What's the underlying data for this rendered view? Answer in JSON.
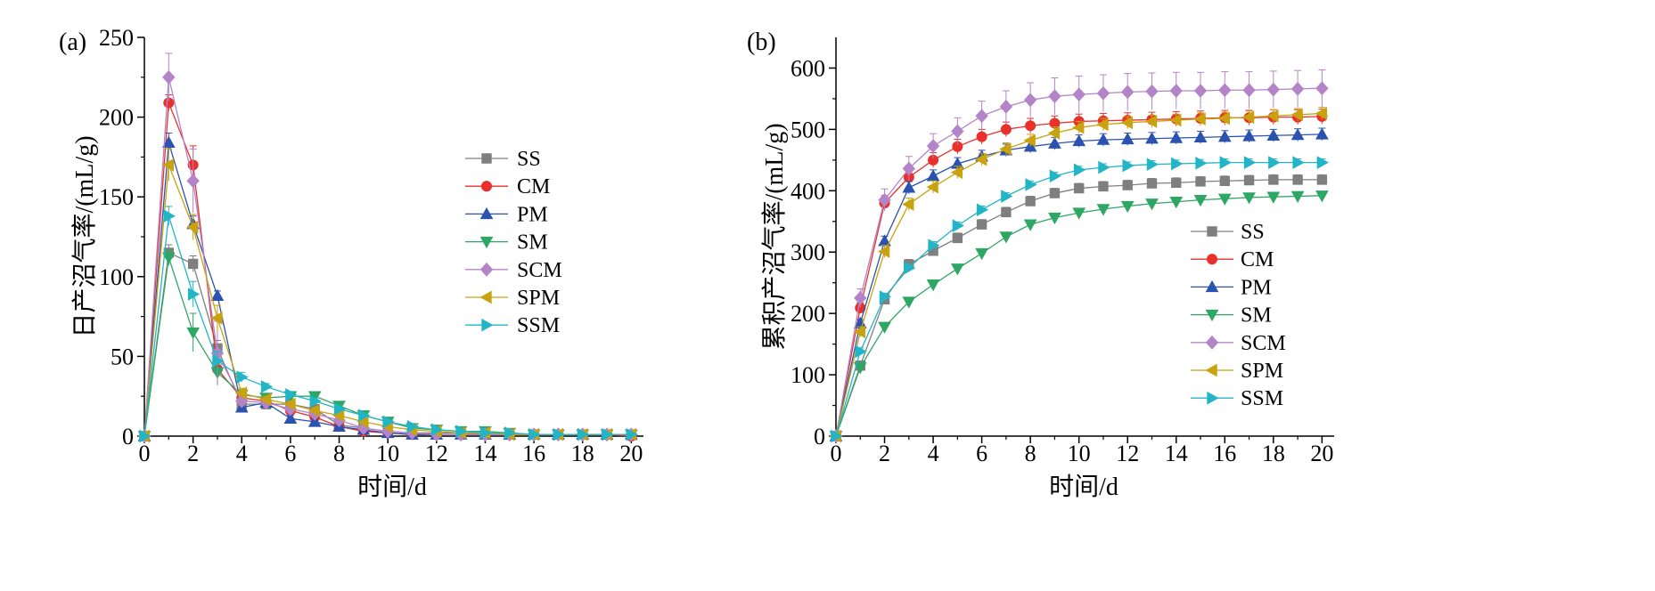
{
  "chart_data": [
    {
      "type": "line",
      "panel_label": "(a)",
      "xlabel": "时间/d",
      "ylabel": "日产沼气率/(mL/g)",
      "xlim": [
        0,
        20.5
      ],
      "ylim": [
        0,
        250
      ],
      "xticks": [
        0,
        2,
        4,
        6,
        8,
        10,
        12,
        14,
        16,
        18,
        20
      ],
      "yticks": [
        0,
        50,
        100,
        150,
        200,
        250
      ],
      "legend_position": "right",
      "x": [
        0,
        1,
        2,
        3,
        4,
        5,
        6,
        7,
        8,
        9,
        10,
        11,
        12,
        13,
        14,
        15,
        16,
        17,
        18,
        19,
        20
      ],
      "series": [
        {
          "name": "SS",
          "color": "#7f7f7f",
          "marker": "square",
          "values": [
            0,
            115,
            108,
            55,
            20,
            20,
            20,
            17,
            7,
            5,
            3,
            2,
            2,
            2,
            1,
            1,
            1,
            1,
            1,
            1,
            1
          ],
          "errors": [
            0,
            5,
            5,
            5,
            3,
            2,
            2,
            2,
            1,
            1,
            1,
            1,
            1,
            1,
            1,
            1,
            1,
            1,
            1,
            1,
            1
          ]
        },
        {
          "name": "CM",
          "color": "#e8312a",
          "marker": "circle",
          "values": [
            0,
            209,
            170,
            42,
            24,
            22,
            16,
            12,
            6,
            3,
            2,
            1,
            1,
            1,
            1,
            1,
            1,
            1,
            1,
            1,
            0
          ],
          "errors": [
            0,
            5,
            12,
            10,
            3,
            2,
            2,
            2,
            1,
            1,
            1,
            1,
            1,
            1,
            1,
            1,
            1,
            1,
            1,
            1,
            1
          ]
        },
        {
          "name": "PM",
          "color": "#2b52ae",
          "marker": "triangle-up",
          "values": [
            0,
            184,
            133,
            88,
            18,
            21,
            11,
            9,
            6,
            4,
            2,
            1,
            1,
            1,
            1,
            1,
            1,
            1,
            1,
            1,
            1
          ],
          "errors": [
            0,
            6,
            5,
            3,
            2,
            2,
            2,
            2,
            1,
            1,
            1,
            1,
            1,
            1,
            1,
            1,
            1,
            1,
            1,
            1,
            1
          ]
        },
        {
          "name": "SM",
          "color": "#2ea664",
          "marker": "triangle-down",
          "values": [
            0,
            112,
            65,
            40,
            26,
            24,
            25,
            25,
            19,
            13,
            9,
            5,
            4,
            3,
            3,
            2,
            1,
            1,
            1,
            1,
            1
          ],
          "errors": [
            0,
            5,
            12,
            8,
            3,
            2,
            2,
            2,
            2,
            2,
            1,
            1,
            1,
            1,
            1,
            1,
            1,
            1,
            1,
            1,
            1
          ]
        },
        {
          "name": "SCM",
          "color": "#b484c8",
          "marker": "diamond",
          "values": [
            0,
            225,
            160,
            52,
            22,
            21,
            17,
            14,
            10,
            5,
            3,
            2,
            1,
            1,
            1,
            1,
            1,
            1,
            1,
            1,
            1
          ],
          "errors": [
            0,
            15,
            20,
            20,
            3,
            2,
            2,
            2,
            1,
            1,
            1,
            1,
            1,
            1,
            1,
            1,
            1,
            1,
            1,
            1,
            1
          ]
        },
        {
          "name": "SPM",
          "color": "#c9a20f",
          "marker": "triangle-left",
          "values": [
            0,
            170,
            131,
            74,
            27,
            23,
            20,
            16,
            13,
            9,
            6,
            4,
            3,
            2,
            2,
            1,
            1,
            1,
            1,
            1,
            1
          ],
          "errors": [
            0,
            10,
            8,
            8,
            3,
            2,
            2,
            2,
            2,
            1,
            1,
            1,
            1,
            1,
            1,
            1,
            1,
            1,
            1,
            1,
            1
          ]
        },
        {
          "name": "SSM",
          "color": "#22b5c5",
          "marker": "triangle-right",
          "values": [
            0,
            138,
            89,
            47,
            37,
            31,
            26,
            22,
            17,
            13,
            9,
            6,
            4,
            3,
            2,
            2,
            1,
            1,
            1,
            1,
            1
          ],
          "errors": [
            0,
            6,
            8,
            6,
            3,
            2,
            2,
            2,
            2,
            1,
            1,
            1,
            1,
            1,
            1,
            1,
            1,
            1,
            1,
            1,
            1
          ]
        }
      ]
    },
    {
      "type": "line",
      "panel_label": "(b)",
      "xlabel": "时间/d",
      "ylabel": "累积产沼气率/(mL/g)",
      "xlim": [
        0,
        20.5
      ],
      "ylim": [
        0,
        650
      ],
      "xticks": [
        0,
        2,
        4,
        6,
        8,
        10,
        12,
        14,
        16,
        18,
        20
      ],
      "yticks": [
        0,
        100,
        200,
        300,
        400,
        500,
        600
      ],
      "legend_position": "bottom-right",
      "x": [
        0,
        1,
        2,
        3,
        4,
        5,
        6,
        7,
        8,
        9,
        10,
        11,
        12,
        13,
        14,
        15,
        16,
        17,
        18,
        19,
        20
      ],
      "series": [
        {
          "name": "SS",
          "color": "#7f7f7f",
          "marker": "square",
          "values": [
            0,
            115,
            223,
            280,
            302,
            323,
            345,
            365,
            383,
            396,
            404,
            407,
            409,
            412,
            413,
            415,
            416,
            417,
            418,
            418,
            418
          ],
          "errors": [
            0,
            5,
            8,
            8,
            8,
            8,
            8,
            8,
            8,
            8,
            8,
            8,
            8,
            8,
            8,
            8,
            8,
            8,
            8,
            8,
            8
          ]
        },
        {
          "name": "CM",
          "color": "#e8312a",
          "marker": "circle",
          "values": [
            0,
            209,
            380,
            422,
            450,
            472,
            488,
            500,
            506,
            510,
            513,
            514,
            515,
            516,
            517,
            518,
            519,
            519,
            520,
            520,
            521
          ],
          "errors": [
            0,
            8,
            12,
            12,
            12,
            12,
            12,
            12,
            12,
            12,
            12,
            12,
            12,
            12,
            12,
            12,
            12,
            12,
            12,
            12,
            12
          ]
        },
        {
          "name": "PM",
          "color": "#2b52ae",
          "marker": "triangle-up",
          "values": [
            0,
            184,
            318,
            405,
            424,
            444,
            456,
            466,
            472,
            477,
            481,
            483,
            484,
            485,
            486,
            487,
            488,
            489,
            490,
            491,
            492
          ],
          "errors": [
            0,
            6,
            8,
            10,
            10,
            10,
            10,
            10,
            10,
            10,
            10,
            10,
            10,
            10,
            10,
            10,
            10,
            10,
            10,
            10,
            10
          ]
        },
        {
          "name": "SM",
          "color": "#2ea664",
          "marker": "triangle-down",
          "values": [
            0,
            112,
            178,
            219,
            247,
            273,
            298,
            325,
            345,
            356,
            364,
            370,
            375,
            379,
            382,
            385,
            387,
            389,
            390,
            391,
            392
          ],
          "errors": [
            0,
            5,
            6,
            6,
            6,
            6,
            6,
            6,
            6,
            6,
            6,
            6,
            6,
            6,
            6,
            6,
            6,
            6,
            6,
            6,
            6
          ]
        },
        {
          "name": "SCM",
          "color": "#b484c8",
          "marker": "diamond",
          "values": [
            0,
            225,
            385,
            436,
            473,
            497,
            522,
            537,
            548,
            554,
            557,
            559,
            561,
            562,
            563,
            563,
            564,
            564,
            565,
            566,
            567
          ],
          "errors": [
            0,
            15,
            18,
            20,
            20,
            22,
            24,
            26,
            28,
            30,
            30,
            30,
            30,
            30,
            30,
            30,
            30,
            30,
            30,
            30,
            30
          ]
        },
        {
          "name": "SPM",
          "color": "#c9a20f",
          "marker": "triangle-left",
          "values": [
            0,
            170,
            301,
            378,
            406,
            430,
            451,
            468,
            482,
            494,
            503,
            508,
            511,
            513,
            515,
            517,
            518,
            520,
            522,
            524,
            526
          ],
          "errors": [
            0,
            8,
            10,
            10,
            10,
            10,
            10,
            10,
            10,
            10,
            10,
            10,
            10,
            10,
            10,
            10,
            10,
            10,
            10,
            10,
            10
          ]
        },
        {
          "name": "SSM",
          "color": "#22b5c5",
          "marker": "triangle-right",
          "values": [
            0,
            138,
            227,
            274,
            311,
            343,
            369,
            391,
            410,
            424,
            434,
            438,
            441,
            443,
            444,
            445,
            446,
            446,
            446,
            446,
            446
          ],
          "errors": [
            0,
            6,
            6,
            6,
            6,
            6,
            6,
            6,
            6,
            6,
            6,
            6,
            6,
            6,
            6,
            6,
            6,
            6,
            6,
            6,
            6
          ]
        }
      ]
    }
  ]
}
